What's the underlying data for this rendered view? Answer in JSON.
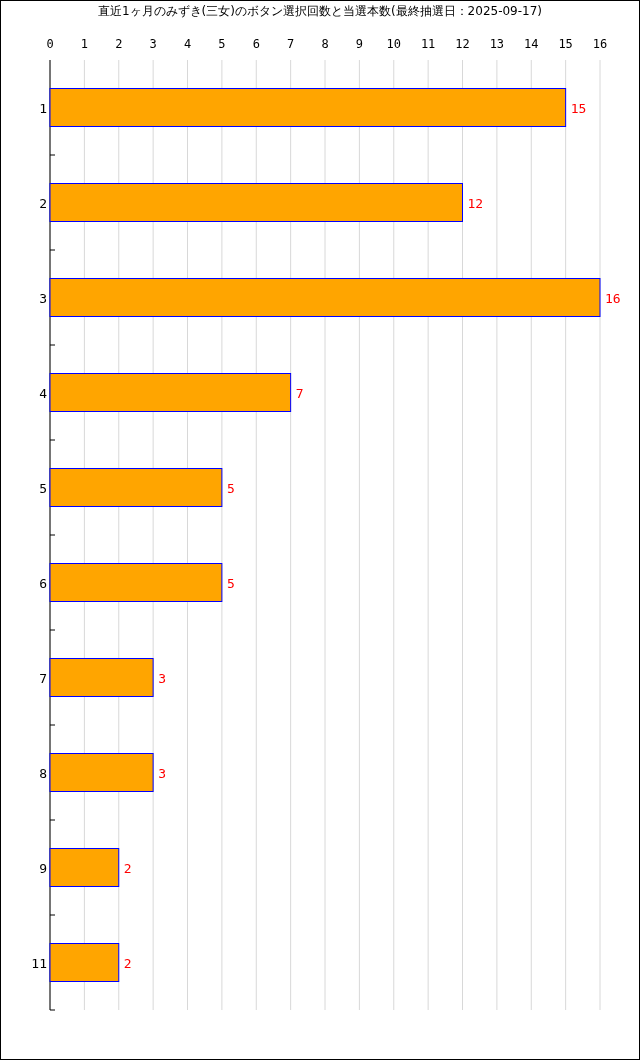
{
  "chart_data": {
    "type": "bar",
    "orientation": "horizontal",
    "title": "直近1ヶ月のみずき(三女)のボタン選択回数と当選本数(最終抽選日：2025-09-17)",
    "categories": [
      "1",
      "2",
      "3",
      "4",
      "5",
      "6",
      "7",
      "8",
      "9",
      "11"
    ],
    "values": [
      15,
      12,
      16,
      7,
      5,
      5,
      3,
      3,
      2,
      2
    ],
    "color": "#ffa500",
    "xlim": [
      0,
      16
    ],
    "xticks": [
      0,
      1,
      2,
      3,
      4,
      5,
      6,
      7,
      8,
      9,
      10,
      11,
      12,
      13,
      14,
      15,
      16
    ],
    "grid": "x",
    "data_labels": true
  }
}
